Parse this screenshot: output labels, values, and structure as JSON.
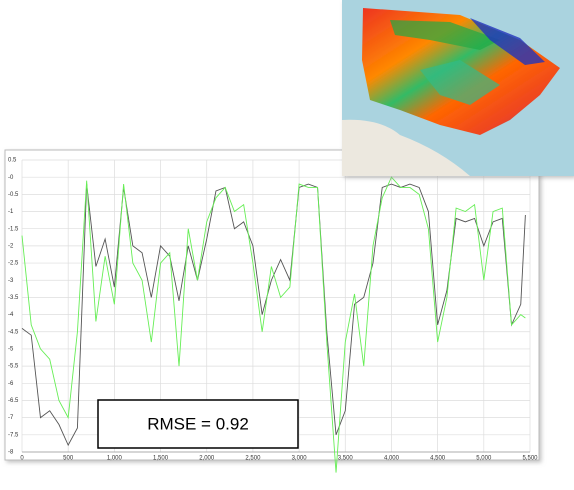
{
  "chart_data": {
    "type": "line",
    "annotation": "RMSE = 0.92",
    "x": [
      0,
      100,
      200,
      300,
      400,
      500,
      600,
      700,
      800,
      900,
      1000,
      1100,
      1200,
      1300,
      1400,
      1500,
      1600,
      1700,
      1800,
      1900,
      2000,
      2100,
      2200,
      2300,
      2400,
      2500,
      2600,
      2700,
      2800,
      2900,
      3000,
      3100,
      3200,
      3300,
      3400,
      3500,
      3600,
      3700,
      3800,
      3900,
      4000,
      4100,
      4200,
      4300,
      4400,
      4500,
      4600,
      4700,
      4800,
      4900,
      5000,
      5100,
      5200,
      5300,
      5400,
      5450
    ],
    "series": [
      {
        "color": "#555555",
        "values": [
          -4.4,
          -4.6,
          -7.0,
          -6.8,
          -7.2,
          -7.8,
          -7.3,
          -0.2,
          -2.6,
          -1.8,
          -3.2,
          -0.3,
          -2.0,
          -2.2,
          -3.5,
          -2.0,
          -2.3,
          -3.6,
          -2.0,
          -3.0,
          -1.8,
          -0.4,
          -0.3,
          -1.5,
          -1.3,
          -2.0,
          -4.0,
          -3.0,
          -2.4,
          -3.0,
          -0.3,
          -0.2,
          -0.3,
          -4.5,
          -7.5,
          -6.8,
          -3.7,
          -3.5,
          -2.5,
          -0.3,
          -0.2,
          -0.3,
          -0.2,
          -0.3,
          -1.0,
          -4.3,
          -3.3,
          -1.2,
          -1.3,
          -1.2,
          -2.0,
          -1.3,
          -1.2,
          -4.3,
          -3.7,
          -1.1
        ]
      },
      {
        "color": "#66ee55",
        "values": [
          -1.7,
          -4.3,
          -5.0,
          -5.3,
          -6.5,
          -7.0,
          -4.5,
          -0.1,
          -4.2,
          -2.3,
          -3.7,
          -0.2,
          -2.5,
          -3.0,
          -4.8,
          -2.5,
          -2.2,
          -5.5,
          -1.5,
          -3.0,
          -1.3,
          -0.6,
          -0.3,
          -1.0,
          -0.8,
          -2.5,
          -4.5,
          -2.6,
          -3.5,
          -3.2,
          -0.2,
          -0.3,
          -0.3,
          -4.8,
          -8.6,
          -4.8,
          -3.4,
          -5.5,
          -2.0,
          -0.6,
          0,
          -0.3,
          -0.3,
          -0.5,
          -1.5,
          -4.8,
          -3.5,
          -0.9,
          -1.0,
          -0.8,
          -3.0,
          -1.0,
          -0.9,
          -4.3,
          -4.0,
          -4.1
        ]
      }
    ],
    "xlim": [
      0,
      5500
    ],
    "xticks": [
      0,
      500,
      {
        "value": 1000,
        "label": "1,000"
      },
      {
        "value": 1500,
        "label": "1,500"
      },
      {
        "value": 2000,
        "label": "2,000"
      },
      {
        "value": 2500,
        "label": "2,500"
      },
      {
        "value": 3000,
        "label": "3,000"
      },
      {
        "value": 3500,
        "label": "3,500"
      },
      {
        "value": 4000,
        "label": "4,000"
      },
      {
        "value": 4500,
        "label": "4,500"
      },
      {
        "value": 5000,
        "label": "5,000"
      },
      {
        "value": 5500,
        "label": "5,500"
      }
    ],
    "ylim": [
      -8,
      0.5
    ],
    "yticks": [
      0.5,
      {
        "value": 0,
        "label": "-0"
      },
      -0.5,
      -1,
      -1.5,
      -2,
      -2.5,
      -3,
      -3.5,
      -4,
      -4.5,
      -5,
      -5.5,
      -6,
      -6.5,
      -7,
      -7.5,
      -8
    ],
    "grid": true
  }
}
